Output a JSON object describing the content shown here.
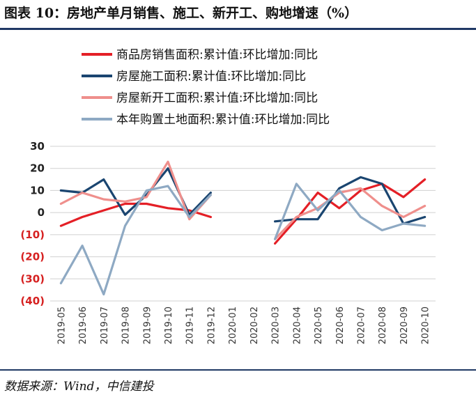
{
  "page": {
    "title": "图表 10：房地产单月销售、施工、新开工、购地增速（%）",
    "source": "数据来源：Wind，中信建投"
  },
  "colors": {
    "sales": "#e41f26",
    "construction": "#1a4570",
    "new_starts": "#ef8f8c",
    "land": "#8ea9c3",
    "negative_tick": "#d62020",
    "positive_tick": "#222222",
    "rule": "#1f3864"
  },
  "chart_data": {
    "type": "line",
    "title": "",
    "xlabel": "",
    "ylabel": "",
    "ylim": [
      -40,
      30
    ],
    "yticks": [
      30,
      20,
      10,
      0,
      -10,
      -20,
      -30,
      -40
    ],
    "ytick_labels": [
      "30",
      "20",
      "10",
      "0",
      "(10)",
      "(20)",
      "(30)",
      "(40)"
    ],
    "grid": true,
    "legend_position": "top",
    "categories": [
      "2019-05",
      "2019-06",
      "2019-07",
      "2019-08",
      "2019-09",
      "2019-10",
      "2019-11",
      "2019-12",
      "2020-01",
      "2020-02",
      "2020-03",
      "2020-04",
      "2020-05",
      "2020-06",
      "2020-07",
      "2020-08",
      "2020-09",
      "2020-10"
    ],
    "series": [
      {
        "name": "商品房销售面积:累计值:环比增加:同比",
        "color": "#e41f26",
        "values": [
          -6,
          -2,
          1,
          4,
          4,
          2,
          1,
          -2,
          null,
          null,
          -14,
          -3,
          9,
          2,
          10,
          13,
          7,
          15
        ]
      },
      {
        "name": "房屋施工面积:累计值:环比增加:同比",
        "color": "#1a4570",
        "values": [
          10,
          9,
          15,
          -1,
          8,
          20,
          -1,
          9,
          null,
          null,
          -4,
          -3,
          -3,
          11,
          16,
          13,
          -5,
          -2
        ]
      },
      {
        "name": "房屋新开工面积:累计值:环比增加:同比",
        "color": "#ef8f8c",
        "values": [
          4,
          9,
          6,
          5,
          7,
          23,
          -3,
          8,
          null,
          null,
          -12,
          -2,
          2,
          9,
          11,
          3,
          -2,
          3
        ]
      },
      {
        "name": "本年购置土地面积:累计值:环比增加:同比",
        "color": "#8ea9c3",
        "values": [
          -32,
          -15,
          -37,
          -6,
          10,
          12,
          -2,
          8,
          null,
          null,
          -12,
          13,
          1,
          10,
          -2,
          -8,
          -5,
          -6
        ]
      }
    ]
  }
}
